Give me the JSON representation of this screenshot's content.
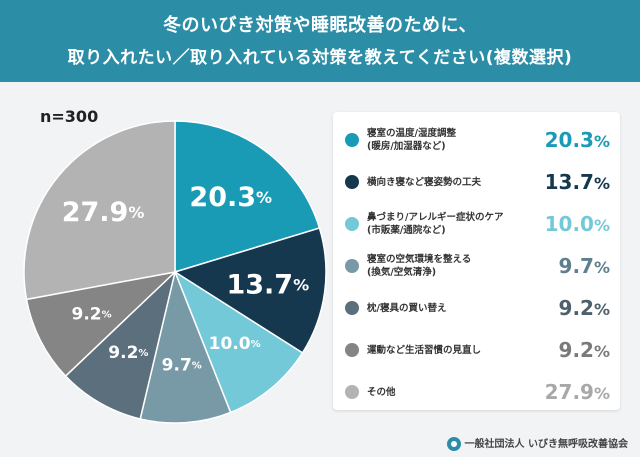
{
  "header": {
    "title_line1": "冬のいびき対策や睡眠改善のために、",
    "title_line2": "取り入れたい／取り入れている対策を教えてください(複数選択)"
  },
  "sample_size": "n=300",
  "footer": {
    "organization": "一般社団法人 いびき無呼吸改善協会",
    "logo_icon": "organization-logo-icon"
  },
  "chart_data": {
    "type": "pie",
    "unit": "%",
    "slices": [
      {
        "label": "寝室の温度/湿度調整\n(暖房/加湿器など)",
        "value": 20.3,
        "color": "#1a9bb5",
        "value_color": "#1a9bb5",
        "text_color": "#ffffff"
      },
      {
        "label": "横向き寝など寝姿勢の工夫",
        "value": 13.7,
        "color": "#16384e",
        "value_color": "#16384e",
        "text_color": "#ffffff"
      },
      {
        "label": "鼻づまり/アレルギー症状のケア\n(市販薬/通院など)",
        "value": 10.0,
        "color": "#74c9d9",
        "value_color": "#74c9d9",
        "text_color": "#ffffff"
      },
      {
        "label": "寝室の空気環境を整える\n(換気/空気清浄)",
        "value": 9.7,
        "color": "#7899a6",
        "value_color": "#5e7f8e",
        "text_color": "#ffffff"
      },
      {
        "label": "枕/寝具の買い替え",
        "value": 9.2,
        "color": "#5b6f7c",
        "value_color": "#4e606c",
        "text_color": "#ffffff"
      },
      {
        "label": "運動など生活習慣の見直し",
        "value": 9.2,
        "color": "#858585",
        "value_color": "#7a7a7a",
        "text_color": "#ffffff"
      },
      {
        "label": "その他",
        "value": 27.9,
        "color": "#b3b3b3",
        "value_color": "#a8a8a8",
        "text_color": "#ffffff"
      }
    ]
  }
}
